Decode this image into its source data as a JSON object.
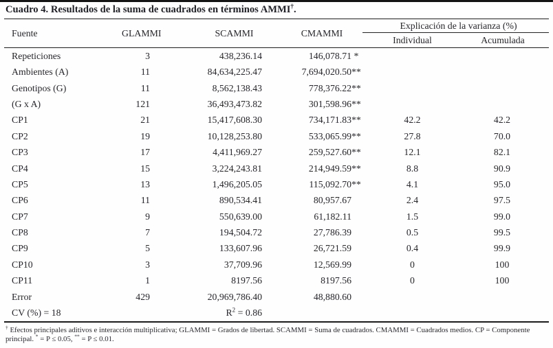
{
  "title": {
    "text": "Cuadro 4. Resultados de la suma de cuadrados en términos AMMI",
    "dagger": "†",
    "period": "."
  },
  "table": {
    "headers": {
      "fuente": "Fuente",
      "glammi": "GLAMMI",
      "scammi": "SCAMMI",
      "cmammi": "CMAMMI",
      "explicacion": "Explicación de la varianza (%)",
      "individual": "Individual",
      "acumulada": "Acumulada"
    },
    "rows": [
      {
        "fuente": "Repeticiones",
        "glammi": "3",
        "scammi": "438,236.14",
        "cmammi": "146,078.71",
        "cmammi_sig": " *",
        "individual": "",
        "acumulada": ""
      },
      {
        "fuente": "Ambientes (A)",
        "glammi": "11",
        "scammi": "84,634,225.47",
        "cmammi": "7,694,020.50",
        "cmammi_sig": "**",
        "individual": "",
        "acumulada": ""
      },
      {
        "fuente": "Genotipos (G)",
        "glammi": "11",
        "scammi": "8,562,138.43",
        "cmammi": "778,376.22",
        "cmammi_sig": "**",
        "individual": "",
        "acumulada": ""
      },
      {
        "fuente": "(G x A)",
        "glammi": "121",
        "scammi": "36,493,473.82",
        "cmammi": "301,598.96",
        "cmammi_sig": "**",
        "individual": "",
        "acumulada": ""
      },
      {
        "fuente": "CP1",
        "glammi": "21",
        "scammi": "15,417,608.30",
        "cmammi": "734,171.83",
        "cmammi_sig": "**",
        "individual": "42.2",
        "acumulada": "42.2"
      },
      {
        "fuente": "CP2",
        "glammi": "19",
        "scammi": "10,128,253.80",
        "cmammi": "533,065.99",
        "cmammi_sig": "**",
        "individual": "27.8",
        "acumulada": "70.0"
      },
      {
        "fuente": "CP3",
        "glammi": "17",
        "scammi": "4,411,969.27",
        "cmammi": "259,527.60",
        "cmammi_sig": "**",
        "individual": "12.1",
        "acumulada": "82.1"
      },
      {
        "fuente": "CP4",
        "glammi": "15",
        "scammi": "3,224,243.81",
        "cmammi": "214,949.59",
        "cmammi_sig": "**",
        "individual": "8.8",
        "acumulada": "90.9"
      },
      {
        "fuente": "CP5",
        "glammi": "13",
        "scammi": "1,496,205.05",
        "cmammi": "115,092.70",
        "cmammi_sig": "**",
        "individual": "4.1",
        "acumulada": "95.0"
      },
      {
        "fuente": "CP6",
        "glammi": "11",
        "scammi": "890,534.41",
        "cmammi": "80,957.67",
        "cmammi_sig": "",
        "individual": "2.4",
        "acumulada": "97.5"
      },
      {
        "fuente": "CP7",
        "glammi": "9",
        "scammi": "550,639.00",
        "cmammi": "61,182.11",
        "cmammi_sig": "",
        "individual": "1.5",
        "acumulada": "99.0"
      },
      {
        "fuente": "CP8",
        "glammi": "7",
        "scammi": "194,504.72",
        "cmammi": "27,786.39",
        "cmammi_sig": "",
        "individual": "0.5",
        "acumulada": "99.5"
      },
      {
        "fuente": "CP9",
        "glammi": "5",
        "scammi": "133,607.96",
        "cmammi": "26,721.59",
        "cmammi_sig": "",
        "individual": "0.4",
        "acumulada": "99.9"
      },
      {
        "fuente": "CP10",
        "glammi": "3",
        "scammi": "37,709.96",
        "cmammi": "12,569.99",
        "cmammi_sig": "",
        "individual": "0",
        "acumulada": "100"
      },
      {
        "fuente": "CP11",
        "glammi": "1",
        "scammi": "8197.56",
        "cmammi": "8197.56",
        "cmammi_sig": "",
        "individual": "0",
        "acumulada": "100"
      },
      {
        "fuente": "Error",
        "glammi": "429",
        "scammi": "20,969,786.40",
        "cmammi": "48,880.60",
        "cmammi_sig": "",
        "individual": "",
        "acumulada": ""
      }
    ],
    "cv_row": {
      "fuente": "CV (%) = 18",
      "r2_base": "R",
      "r2_sup": "2",
      "r2_rest": " = 0.86"
    }
  },
  "footnote": {
    "dagger": "†",
    "body": " Efectos principales aditivos e interacción multiplicativa; GLAMMI = Grados de libertad. SCAMMI = Suma de cuadrados. CMAMMI = Cuadrados medios. CP = Componente principal. ",
    "sig1_sym": "*",
    "sig1_text": " = P ≤ 0.05,  ",
    "sig2_sym": "**",
    "sig2_text": " = P ≤ 0.01."
  }
}
